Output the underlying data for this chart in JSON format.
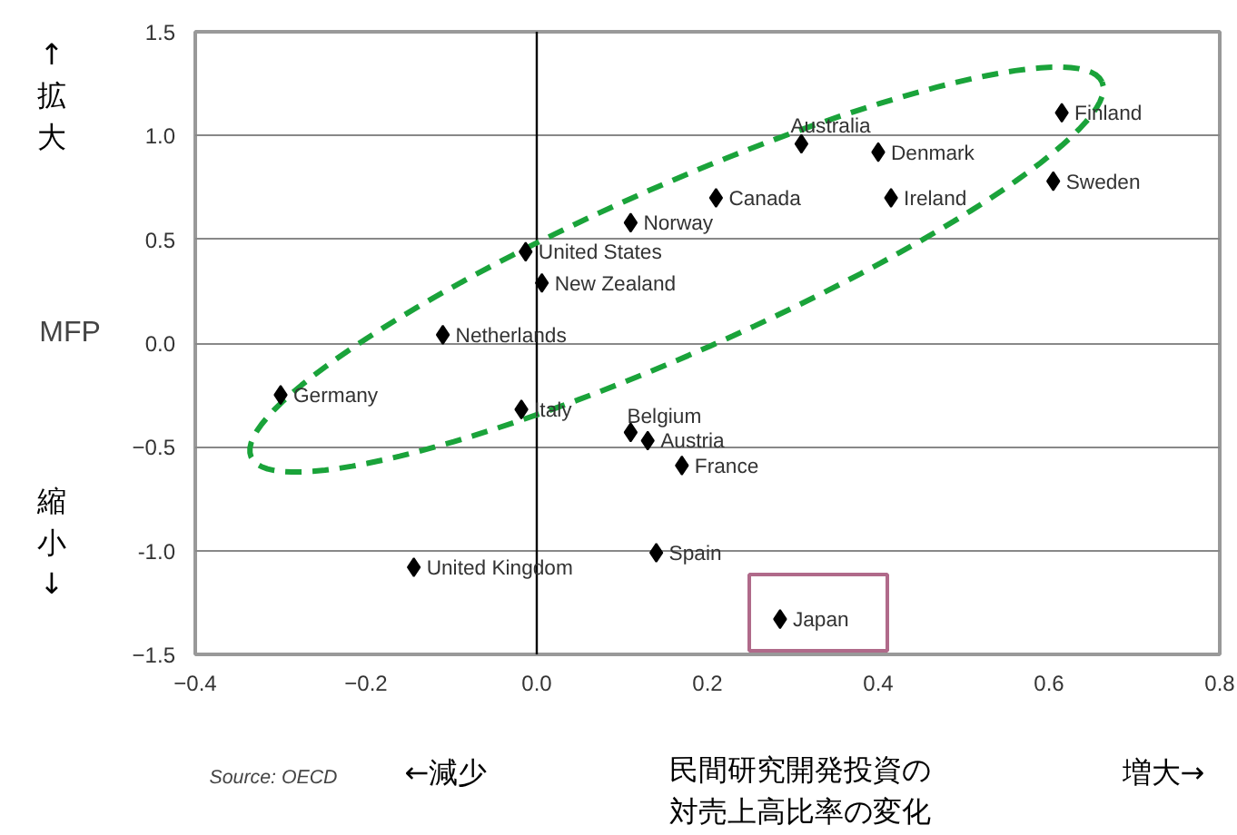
{
  "chart_data": {
    "type": "scatter",
    "ylabel": "MFP",
    "x": [
      -0.3,
      -0.11,
      -0.013,
      0.006,
      0.11,
      -0.018,
      0.11,
      0.13,
      0.17,
      0.14,
      -0.144,
      0.21,
      0.31,
      0.4,
      0.415,
      0.615,
      0.605,
      0.285
    ],
    "values": [
      -0.25,
      0.04,
      0.44,
      0.29,
      0.58,
      -0.32,
      -0.43,
      -0.47,
      -0.59,
      -1.01,
      -1.08,
      0.7,
      0.96,
      0.92,
      0.7,
      1.11,
      0.78,
      -1.33
    ],
    "color": "#000000",
    "marker": "diamond",
    "legend": false,
    "grid": "y",
    "xlim": [
      -0.4,
      0.8
    ],
    "ylim": [
      -1.5,
      1.5
    ],
    "xticks": [
      -0.4,
      -0.2,
      {
        "value": 0,
        "label": "0.0"
      },
      0.2,
      0.4,
      0.6,
      0.8
    ],
    "yticks": [
      -1.5,
      {
        "value": -1,
        "label": "-1.0"
      },
      -0.5,
      {
        "value": 0,
        "label": "0.0"
      },
      0.5,
      {
        "value": 1,
        "label": "1.0"
      },
      1.5
    ],
    "ref_lines": [
      {
        "axis": "x",
        "value": 0,
        "label": null,
        "color": "#000000"
      }
    ],
    "annotations": [
      {
        "text": "Germany",
        "x": -0.3,
        "y": -0.25
      },
      {
        "text": "Netherlands",
        "x": -0.11,
        "y": 0.04
      },
      {
        "text": "United States",
        "x": -0.013,
        "y": 0.44
      },
      {
        "text": "New Zealand",
        "x": 0.006,
        "y": 0.29
      },
      {
        "text": "Norway",
        "x": 0.11,
        "y": 0.58
      },
      {
        "text": "Italy",
        "x": -0.018,
        "y": -0.32
      },
      {
        "text": "Belgium",
        "x": 0.11,
        "y": -0.43
      },
      {
        "text": "Austria",
        "x": 0.13,
        "y": -0.47
      },
      {
        "text": "France",
        "x": 0.17,
        "y": -0.59
      },
      {
        "text": "Spain",
        "x": 0.14,
        "y": -1.01
      },
      {
        "text": "United Kingdom",
        "x": -0.144,
        "y": -1.08
      },
      {
        "text": "Canada",
        "x": 0.21,
        "y": 0.7
      },
      {
        "text": "Australia",
        "x": 0.31,
        "y": 0.96
      },
      {
        "text": "Denmark",
        "x": 0.4,
        "y": 0.92
      },
      {
        "text": "Ireland",
        "x": 0.415,
        "y": 0.7
      },
      {
        "text": "Finland",
        "x": 0.615,
        "y": 1.11
      },
      {
        "text": "Sweden",
        "x": 0.605,
        "y": 0.78
      },
      {
        "text": "Japan",
        "x": 0.285,
        "y": -1.33
      },
      "↑拡大",
      "縮小↓",
      "←減少",
      "民間研究開発投資の対売上高比率の変化",
      "増大→",
      "Source: OECD"
    ]
  }
}
